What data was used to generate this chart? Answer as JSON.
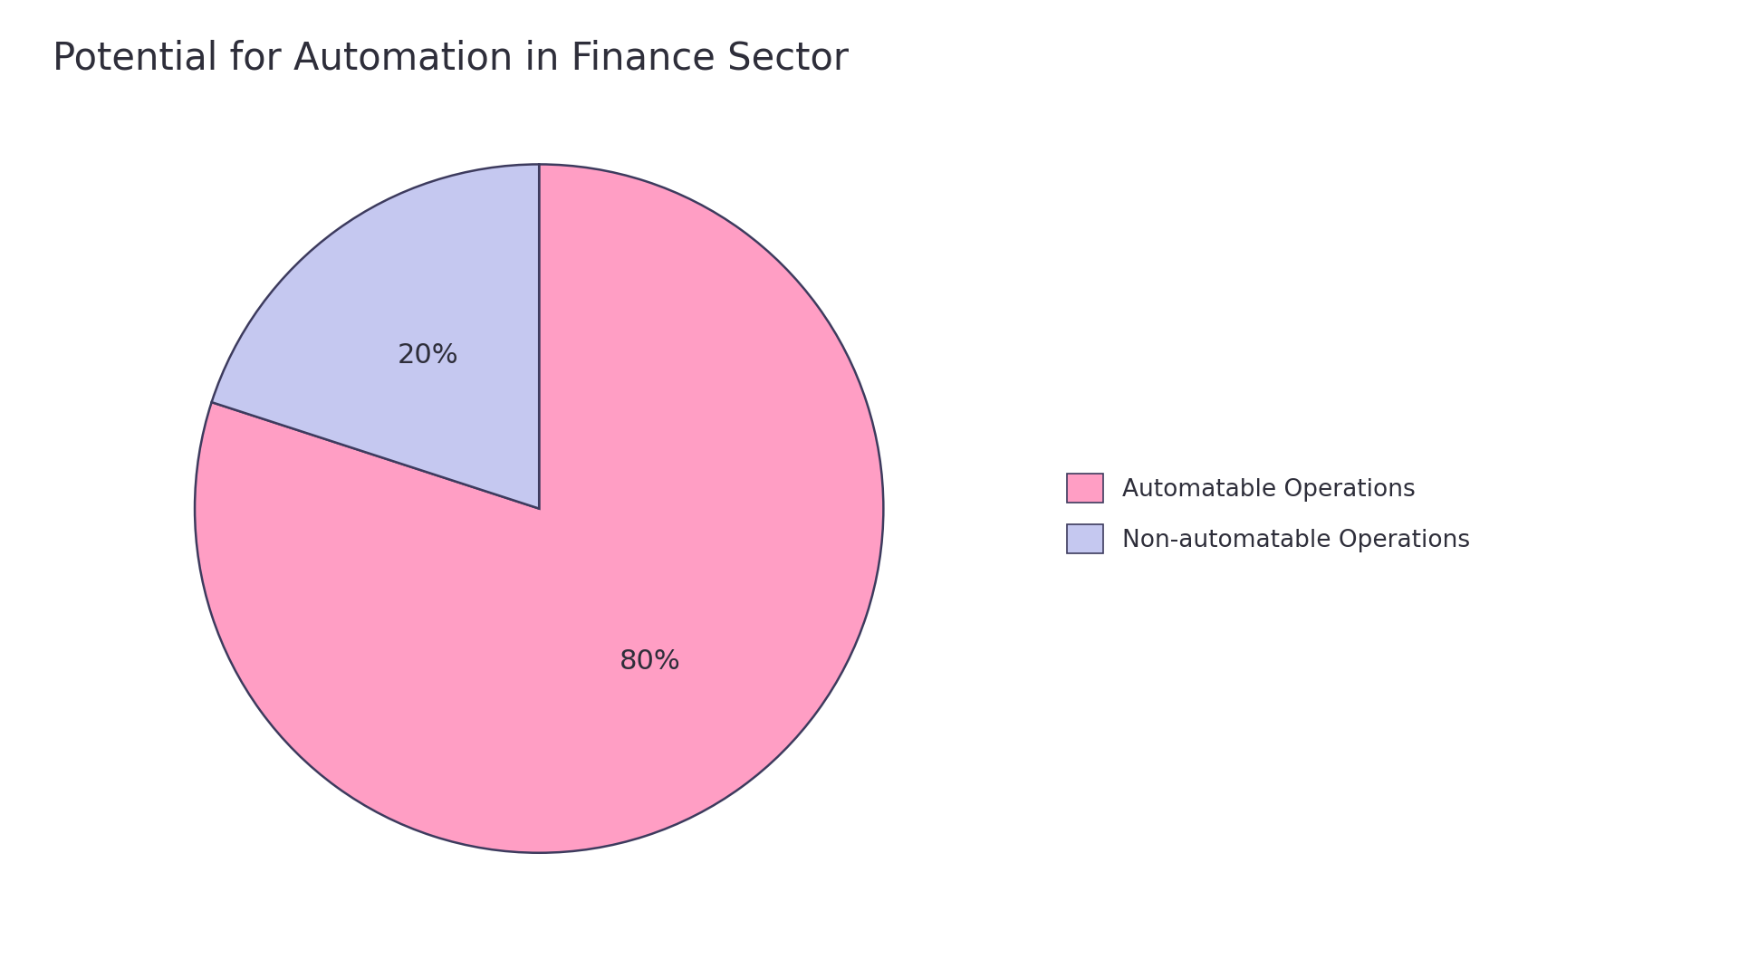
{
  "title": "Potential for Automation in Finance Sector",
  "slices": [
    80,
    20
  ],
  "labels": [
    "Automatable Operations",
    "Non-automatable Operations"
  ],
  "colors": [
    "#FF9EC4",
    "#C5C8F0"
  ],
  "edge_color": "#3D3B5E",
  "edge_width": 1.8,
  "pct_labels": [
    "80%",
    "20%"
  ],
  "startangle": 90,
  "title_fontsize": 30,
  "pct_fontsize": 22,
  "background_color": "#FFFFFF",
  "text_color": "#2E2E3A",
  "legend_fontsize": 19
}
